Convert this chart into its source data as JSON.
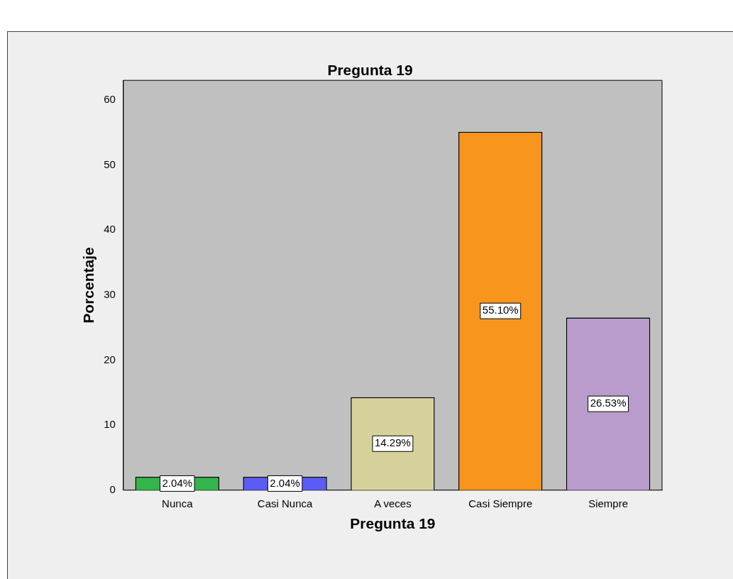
{
  "chart_data": {
    "type": "bar",
    "title": "Pregunta 19",
    "xlabel": "Pregunta 19",
    "ylabel": "Porcentaje",
    "categories": [
      "Nunca",
      "Casi Nunca",
      "A veces",
      "Casi Siempre",
      "Siempre"
    ],
    "values": [
      2.04,
      2.04,
      14.29,
      55.1,
      26.53
    ],
    "colors": [
      "#33b54a",
      "#5b5bf5",
      "#d6d19a",
      "#f7951d",
      "#b99bcc"
    ],
    "value_labels": [
      "2.04%",
      "2.04%",
      "14.29%",
      "55.10%",
      "26.53%"
    ],
    "ylim": [
      0,
      63
    ],
    "yticks": [
      0,
      10,
      20,
      30,
      40,
      50,
      60
    ],
    "grid": false,
    "legend": false
  }
}
